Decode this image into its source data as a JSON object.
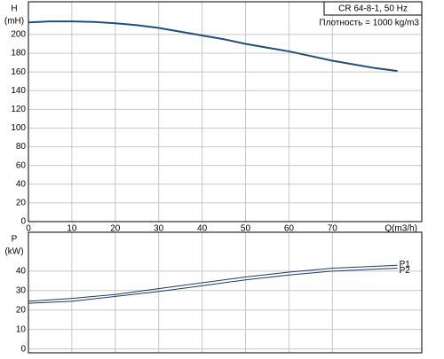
{
  "chart_data": [
    {
      "type": "line",
      "title": "CR 64-8-1, 50 Hz",
      "subtitle": "Плотность = 1000 kg/m3",
      "ylabel": [
        "H",
        "(mH)"
      ],
      "xlabel": "Q(m3/h)",
      "x": [
        0,
        5,
        10,
        15,
        20,
        25,
        30,
        35,
        40,
        45,
        50,
        55,
        60,
        65,
        70,
        75,
        80,
        85
      ],
      "series": [
        {
          "name": "H",
          "color": "#1f4e79",
          "values": [
            213,
            214,
            214,
            213.5,
            212,
            210,
            207,
            203,
            199,
            195,
            190,
            186,
            182,
            177,
            172,
            168,
            164,
            161
          ]
        }
      ],
      "xlim": [
        0,
        90.6
      ],
      "xticks": [
        0,
        10,
        20,
        30,
        40,
        50,
        60,
        70
      ],
      "ylim": [
        0,
        235
      ],
      "yticks": [
        0,
        20,
        40,
        60,
        80,
        100,
        120,
        140,
        160,
        180,
        200
      ],
      "grid": true
    },
    {
      "type": "line",
      "ylabel": [
        "P",
        "(kW)"
      ],
      "x": [
        0,
        10,
        20,
        30,
        40,
        50,
        60,
        70,
        80,
        85
      ],
      "series": [
        {
          "name": "P1",
          "color": "#1f3a5f",
          "values": [
            24.5,
            26,
            28,
            31,
            34,
            37,
            39.5,
            41.5,
            42.5,
            43
          ]
        },
        {
          "name": "P2",
          "color": "#1f3a5f",
          "values": [
            23.5,
            24.5,
            27,
            29.5,
            32.5,
            35.5,
            38,
            40,
            41,
            41.5
          ]
        }
      ],
      "xlim": [
        0,
        90.6
      ],
      "xticks": [
        0,
        10,
        20,
        30,
        40,
        50,
        60,
        70
      ],
      "ylim": [
        -2,
        60
      ],
      "yticks": [
        0,
        10,
        20,
        30,
        40
      ],
      "grid": true
    }
  ]
}
